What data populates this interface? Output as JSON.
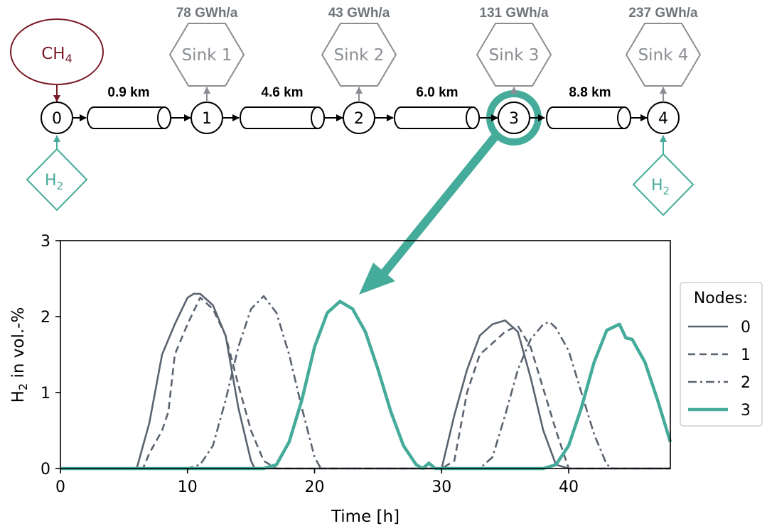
{
  "network": {
    "source": {
      "label": "CH",
      "sub": "4"
    },
    "nodes": [
      "0",
      "1",
      "2",
      "3",
      "4"
    ],
    "pipes": [
      "0.9 km",
      "4.6 km",
      "6.0 km",
      "8.8 km"
    ],
    "sinks": [
      {
        "label": "Sink 1",
        "demand": "78 GWh/a"
      },
      {
        "label": "Sink 2",
        "demand": "43 GWh/a"
      },
      {
        "label": "Sink 3",
        "demand": "131 GWh/a"
      },
      {
        "label": "Sink 4",
        "demand": "237 GWh/a"
      }
    ],
    "injections": [
      {
        "label": "H",
        "sub": "2",
        "node": 0
      },
      {
        "label": "H",
        "sub": "2",
        "node": 4
      }
    ],
    "highlighted_node": 3,
    "colors": {
      "source": "#7a1a26",
      "sink": "#8a8e93",
      "hydrogen": "#45ab9a",
      "ink": "#000000"
    }
  },
  "chart_data": {
    "type": "line",
    "title": "",
    "xlabel": "Time [h]",
    "ylabel_main": "H",
    "ylabel_sub": "2",
    "ylabel_rest": " in vol.-%",
    "xlim": [
      0,
      48
    ],
    "ylim": [
      0,
      3
    ],
    "xticks": [
      0,
      10,
      20,
      30,
      40
    ],
    "yticks": [
      0,
      1,
      2,
      3
    ],
    "legend": {
      "title": "Nodes:",
      "placement": "right"
    },
    "series": [
      {
        "name": "0",
        "color": "#5a6470",
        "style": "solid",
        "x": [
          0,
          5,
          6,
          7,
          8,
          9,
          10,
          10.5,
          11,
          12,
          13,
          14,
          15,
          15.3,
          16,
          20,
          29,
          30,
          31,
          32,
          33,
          34,
          35,
          36,
          37,
          38,
          39,
          40,
          48
        ],
        "y": [
          0,
          0,
          0,
          0.6,
          1.5,
          1.9,
          2.25,
          2.3,
          2.3,
          2.15,
          1.75,
          0.8,
          0.1,
          0,
          0,
          0,
          0,
          0,
          0.7,
          1.3,
          1.75,
          1.9,
          1.95,
          1.8,
          1.2,
          0.5,
          0.05,
          0,
          0
        ]
      },
      {
        "name": "1",
        "color": "#5a6470",
        "style": "dashed",
        "x": [
          0,
          6,
          6.5,
          7,
          8,
          8.5,
          9,
          10,
          11,
          12,
          13,
          14,
          15,
          16,
          17,
          20,
          30,
          31,
          32,
          33,
          34,
          35,
          36,
          37,
          38,
          39,
          40,
          48
        ],
        "y": [
          0,
          0,
          0,
          0.2,
          0.5,
          0.75,
          1.5,
          1.9,
          2.25,
          2.1,
          1.75,
          1.1,
          0.5,
          0.1,
          0,
          0,
          0,
          0.1,
          1.0,
          1.5,
          1.65,
          1.8,
          1.88,
          1.6,
          1.05,
          0.5,
          0,
          0
        ]
      },
      {
        "name": "2",
        "color": "#5a6470",
        "style": "dashdot",
        "x": [
          0,
          10,
          11,
          12,
          13,
          14,
          15,
          16,
          17,
          18,
          19,
          20,
          20.5,
          21,
          33,
          34,
          35,
          36,
          37,
          38,
          38.5,
          39,
          40,
          41,
          42,
          43,
          43.5,
          44,
          48
        ],
        "y": [
          0,
          0,
          0.05,
          0.3,
          0.9,
          1.6,
          2.1,
          2.27,
          2.05,
          1.5,
          0.8,
          0.15,
          0,
          0,
          0,
          0.15,
          0.7,
          1.3,
          1.7,
          1.9,
          1.93,
          1.85,
          1.55,
          1.0,
          0.45,
          0.05,
          0,
          0,
          0
        ]
      },
      {
        "name": "3",
        "color": "#45ab9a",
        "style": "solid-thick",
        "x": [
          0,
          16,
          17,
          17.5,
          18,
          19,
          20,
          21,
          22,
          23,
          24,
          25,
          26,
          27,
          28,
          28.5,
          29,
          29.5,
          30,
          38,
          39,
          40,
          41,
          42,
          43,
          44,
          44.5,
          45,
          46,
          47,
          48
        ],
        "y": [
          0,
          0,
          0.05,
          0.2,
          0.35,
          0.9,
          1.6,
          2.05,
          2.2,
          2.1,
          1.8,
          1.3,
          0.75,
          0.3,
          0.05,
          0,
          0.07,
          0,
          0,
          0,
          0.05,
          0.3,
          0.8,
          1.4,
          1.82,
          1.9,
          1.72,
          1.7,
          1.4,
          0.9,
          0.35
        ]
      }
    ]
  }
}
